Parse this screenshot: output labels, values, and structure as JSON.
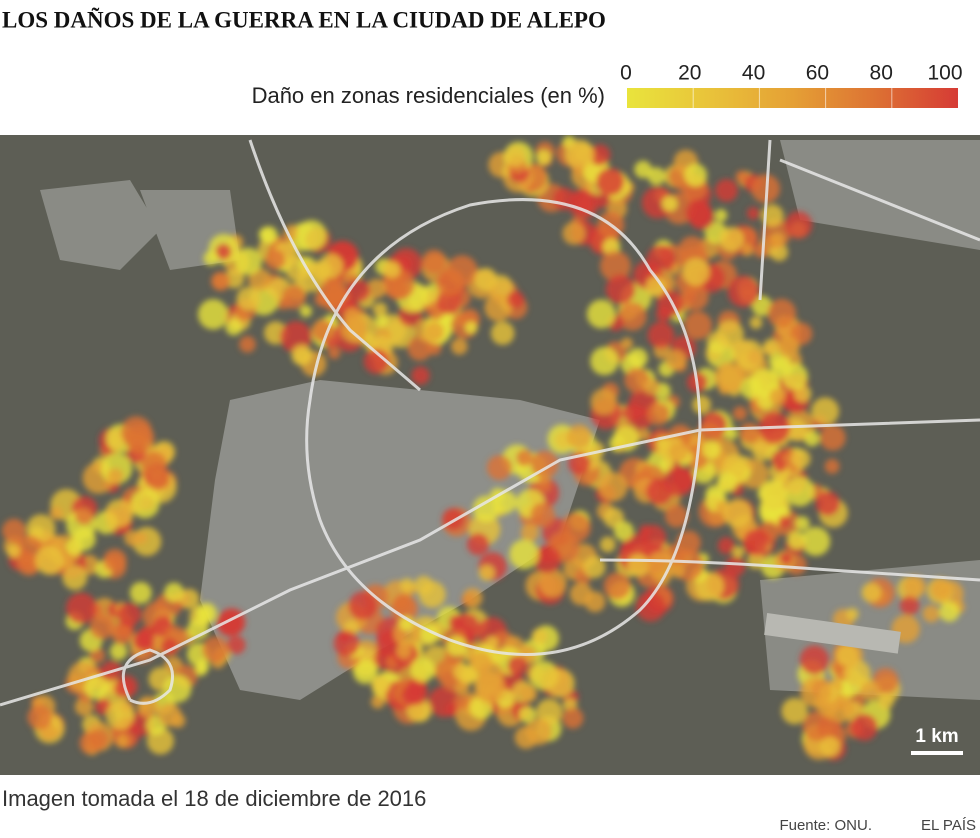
{
  "title": "LOS DAÑOS DE LA GUERRA EN LA CIUDAD DE ALEPO",
  "legend": {
    "label": "Daño en zonas residenciales (en %)",
    "ticks": [
      0,
      20,
      40,
      60,
      80,
      100
    ],
    "colors": [
      "#e9e43c",
      "#e9c33a",
      "#e5a035",
      "#dd7233",
      "#d63b35"
    ]
  },
  "scale": "1 km",
  "caption": "Imagen tomada el 18 de diciembre de 2016",
  "source": "Fuente: ONU.",
  "brand": "EL PAÍS"
}
